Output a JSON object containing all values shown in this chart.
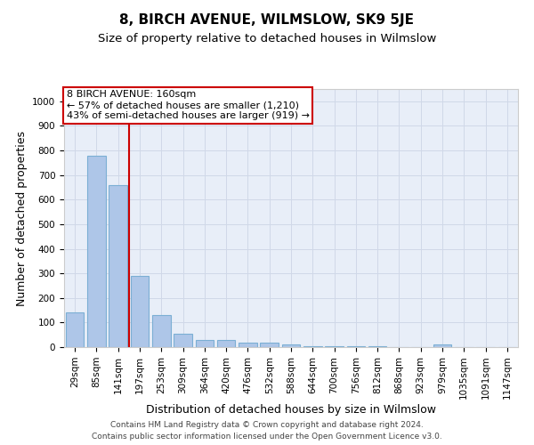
{
  "title": "8, BIRCH AVENUE, WILMSLOW, SK9 5JE",
  "subtitle": "Size of property relative to detached houses in Wilmslow",
  "xlabel": "Distribution of detached houses by size in Wilmslow",
  "ylabel": "Number of detached properties",
  "categories": [
    "29sqm",
    "85sqm",
    "141sqm",
    "197sqm",
    "253sqm",
    "309sqm",
    "364sqm",
    "420sqm",
    "476sqm",
    "532sqm",
    "588sqm",
    "644sqm",
    "700sqm",
    "756sqm",
    "812sqm",
    "868sqm",
    "923sqm",
    "979sqm",
    "1035sqm",
    "1091sqm",
    "1147sqm"
  ],
  "values": [
    140,
    780,
    660,
    290,
    130,
    55,
    30,
    30,
    17,
    18,
    10,
    5,
    2,
    5,
    2,
    0,
    0,
    10,
    0,
    0,
    0
  ],
  "bar_color": "#aec6e8",
  "bar_edge_color": "#7bafd4",
  "vline_x": 2.5,
  "vline_color": "#cc0000",
  "annotation_line1": "8 BIRCH AVENUE: 160sqm",
  "annotation_line2": "← 57% of detached houses are smaller (1,210)",
  "annotation_line3": "43% of semi-detached houses are larger (919) →",
  "annotation_box_color": "#ffffff",
  "annotation_box_edge": "#cc0000",
  "ylim": [
    0,
    1050
  ],
  "yticks": [
    0,
    100,
    200,
    300,
    400,
    500,
    600,
    700,
    800,
    900,
    1000
  ],
  "grid_color": "#d0d8e8",
  "background_color": "#e8eef8",
  "footer_line1": "Contains HM Land Registry data © Crown copyright and database right 2024.",
  "footer_line2": "Contains public sector information licensed under the Open Government Licence v3.0.",
  "title_fontsize": 11,
  "subtitle_fontsize": 9.5,
  "axis_label_fontsize": 9,
  "tick_fontsize": 7.5,
  "annotation_fontsize": 8,
  "footer_fontsize": 6.5
}
